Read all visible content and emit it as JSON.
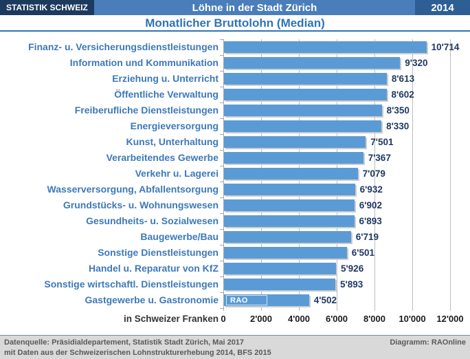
{
  "header": {
    "brand": "STATISTIK SCHWEIZ",
    "title": "Löhne in der Stadt Zürich",
    "year": "2014"
  },
  "subtitle": "Monatlicher Bruttolohn (Median)",
  "chart_data": {
    "type": "bar",
    "orientation": "horizontal",
    "title": "Monatlicher Bruttolohn (Median)",
    "categories": [
      "Finanz- u. Versicherungsdienstleistungen",
      "Information und Kommunikation",
      "Erziehung u. Unterricht",
      "Öffentliche Verwaltung",
      "Freiberufliche Dienstleistungen",
      "Energieversorgung",
      "Kunst, Unterhaltung",
      "Verarbeitendes Gewerbe",
      "Verkehr u. Lagerei",
      "Wasserversorgung, Abfallentsorgung",
      "Grundstücks- u. Wohnungswesen",
      "Gesundheits- u. Sozialwesen",
      "Baugewerbe/Bau",
      "Sonstige Dienstleistungen",
      "Handel u. Reparatur von KfZ",
      "Sonstige wirtschaftl. Dienstleistungen",
      "Gastgewerbe u. Gastronomie"
    ],
    "values": [
      10714,
      9320,
      8613,
      8602,
      8350,
      8330,
      7501,
      7367,
      7079,
      6932,
      6902,
      6893,
      6719,
      6501,
      5926,
      5893,
      4502
    ],
    "value_labels": [
      "10'714",
      "9'320",
      "8'613",
      "8'602",
      "8'350",
      "8'330",
      "7'501",
      "7'367",
      "7'079",
      "6'932",
      "6'902",
      "6'893",
      "6'719",
      "6'501",
      "5'926",
      "5'893",
      "4'502"
    ],
    "xlabel": "in Schweizer Franken",
    "x_ticks": [
      "0",
      "2'000",
      "4'000",
      "6'000",
      "8'000",
      "10'000",
      "12'000"
    ],
    "x_tick_values": [
      0,
      2000,
      4000,
      6000,
      8000,
      10000,
      12000
    ],
    "xlim": [
      0,
      12000
    ],
    "grid": true,
    "legend": false,
    "bar_color": "#5b9bd5",
    "watermark_text": "RAO",
    "watermark_row": 16
  },
  "footer": {
    "source_line1": "Datenquelle: Präsidialdepartement, Statistik Stadt Zürich, Mai 2017",
    "source_line2": "mit Daten aus der Schweizerischen Lohnstrukturerhebung 2014, BFS 2015",
    "credit": "Diagramm: RAOnline"
  },
  "colors": {
    "header_bar": "#4a7eba",
    "brand_box": "#1c3a5e",
    "year_box": "#2d5f94",
    "subtitle": "#2e74b6",
    "category_label": "#3d79b8",
    "value_label": "#1f3864",
    "bar": "#5b9bd5",
    "gridline": "#bdbdbd",
    "footer_bg": "#d9d9d9",
    "footer_text": "#595959"
  }
}
